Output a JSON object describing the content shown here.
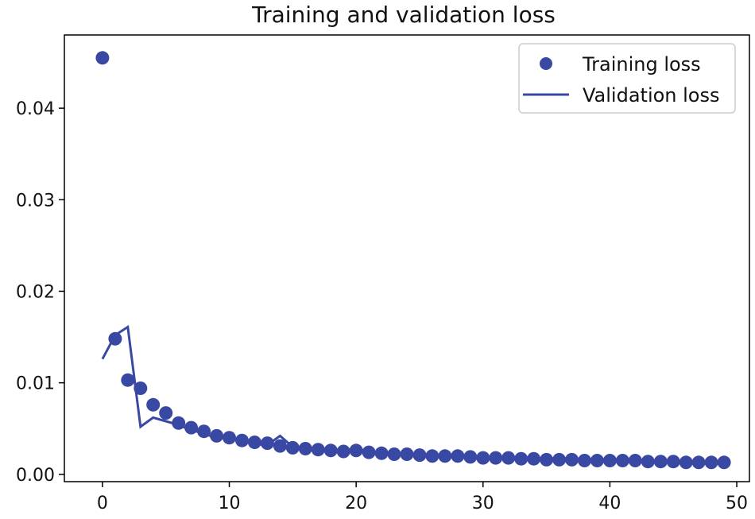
{
  "chart_data": {
    "type": "line",
    "title": "Training and validation loss",
    "xlabel": "",
    "ylabel": "",
    "xlim": [
      -3,
      51
    ],
    "ylim": [
      -0.0008,
      0.048
    ],
    "x_ticks": [
      0,
      10,
      20,
      30,
      40,
      50
    ],
    "y_ticks": [
      0.0,
      0.01,
      0.02,
      0.03,
      0.04
    ],
    "x_tick_labels": [
      "0",
      "10",
      "20",
      "30",
      "40",
      "50"
    ],
    "y_tick_labels": [
      "0.00",
      "0.01",
      "0.02",
      "0.03",
      "0.04"
    ],
    "legend_position": "top-right",
    "colors": {
      "series": "#3949a3"
    },
    "series": [
      {
        "name": "Training loss",
        "style": "markers",
        "x": [
          0,
          1,
          2,
          3,
          4,
          5,
          6,
          7,
          8,
          9,
          10,
          11,
          12,
          13,
          14,
          15,
          16,
          17,
          18,
          19,
          20,
          21,
          22,
          23,
          24,
          25,
          26,
          27,
          28,
          29,
          30,
          31,
          32,
          33,
          34,
          35,
          36,
          37,
          38,
          39,
          40,
          41,
          42,
          43,
          44,
          45,
          46,
          47,
          48,
          49
        ],
        "values": [
          0.0455,
          0.0148,
          0.0103,
          0.0094,
          0.0076,
          0.0067,
          0.0056,
          0.0051,
          0.0047,
          0.0042,
          0.004,
          0.0037,
          0.0035,
          0.0034,
          0.0031,
          0.0029,
          0.0028,
          0.0027,
          0.0026,
          0.0025,
          0.0026,
          0.0024,
          0.0023,
          0.0022,
          0.0022,
          0.0021,
          0.002,
          0.002,
          0.002,
          0.0019,
          0.0018,
          0.0018,
          0.0018,
          0.0017,
          0.0017,
          0.0016,
          0.0016,
          0.0016,
          0.0015,
          0.0015,
          0.0015,
          0.0015,
          0.0015,
          0.0014,
          0.0014,
          0.0014,
          0.0013,
          0.0013,
          0.0013,
          0.0013
        ]
      },
      {
        "name": "Validation loss",
        "style": "line",
        "x": [
          0,
          1,
          2,
          3,
          4,
          5,
          6,
          7,
          8,
          9,
          10,
          11,
          12,
          13,
          14,
          15,
          16,
          17,
          18,
          19,
          20,
          21,
          22,
          23,
          24,
          25,
          26,
          27,
          28,
          29,
          30,
          31,
          32,
          33,
          34,
          35,
          36,
          37,
          38,
          39,
          40,
          41,
          42,
          43,
          44,
          45,
          46,
          47,
          48,
          49
        ],
        "values": [
          0.0126,
          0.0152,
          0.0161,
          0.0052,
          0.0062,
          0.0058,
          0.0054,
          0.0048,
          0.0045,
          0.0039,
          0.004,
          0.0036,
          0.0033,
          0.0032,
          0.0042,
          0.003,
          0.0028,
          0.0028,
          0.0027,
          0.0026,
          0.0028,
          0.0025,
          0.0024,
          0.0023,
          0.0022,
          0.0021,
          0.0021,
          0.0021,
          0.0021,
          0.0019,
          0.0019,
          0.0018,
          0.0018,
          0.0018,
          0.0017,
          0.0017,
          0.0016,
          0.0016,
          0.0016,
          0.0016,
          0.0015,
          0.0015,
          0.0015,
          0.0014,
          0.0014,
          0.0014,
          0.0014,
          0.0013,
          0.0013,
          0.0013
        ]
      }
    ]
  }
}
